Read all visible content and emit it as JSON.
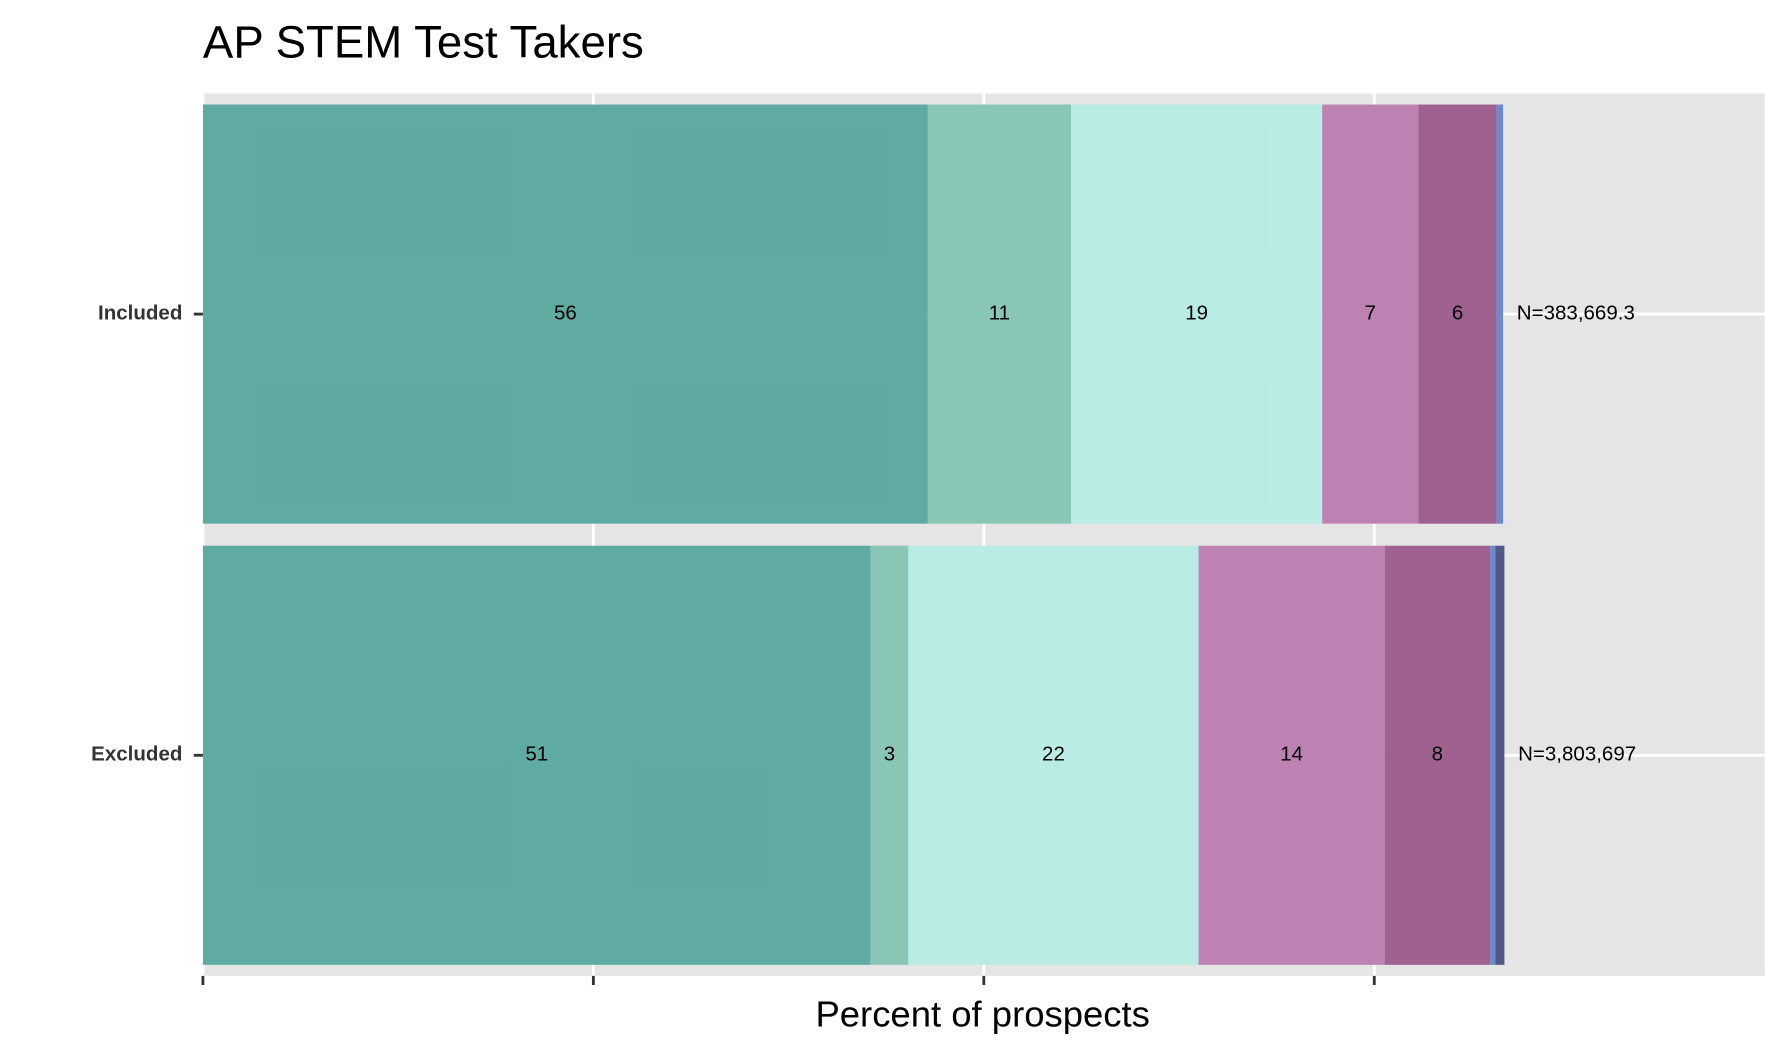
{
  "chart_data": {
    "type": "stacked-barh",
    "title": "AP STEM Test Takers",
    "x_label": "Percent of prospects",
    "categories": [
      "Included",
      "Excluded"
    ],
    "series": [
      {
        "color": "#5ba89e",
        "values": [
          55.7,
          51.3
        ],
        "value_labels": [
          "56",
          "51"
        ]
      },
      {
        "color": "#86c4b4",
        "values": [
          11.0,
          2.9
        ],
        "value_labels": [
          "11",
          "3"
        ]
      },
      {
        "color": "#b7ebe3",
        "values": [
          19.3,
          22.3
        ],
        "value_labels": [
          "19",
          "22"
        ]
      },
      {
        "color": "#bb7db0",
        "values": [
          7.4,
          14.3
        ],
        "value_labels": [
          "7",
          "14"
        ]
      },
      {
        "color": "#9c5c8c",
        "values": [
          6.0,
          8.1
        ],
        "value_labels": [
          "6",
          "8"
        ]
      },
      {
        "color": "#6a85c8",
        "values": [
          0.5,
          0.4
        ],
        "value_labels": [
          null,
          null
        ]
      },
      {
        "color": "#4a5480",
        "values": [
          0,
          0.7
        ],
        "value_labels": [
          null,
          null
        ]
      }
    ],
    "totals_labels": [
      "N=383,669.3",
      "N=3,803,697"
    ],
    "xlim": [
      0,
      120
    ],
    "xticks": [
      0,
      30,
      60,
      90
    ],
    "grid": true
  }
}
